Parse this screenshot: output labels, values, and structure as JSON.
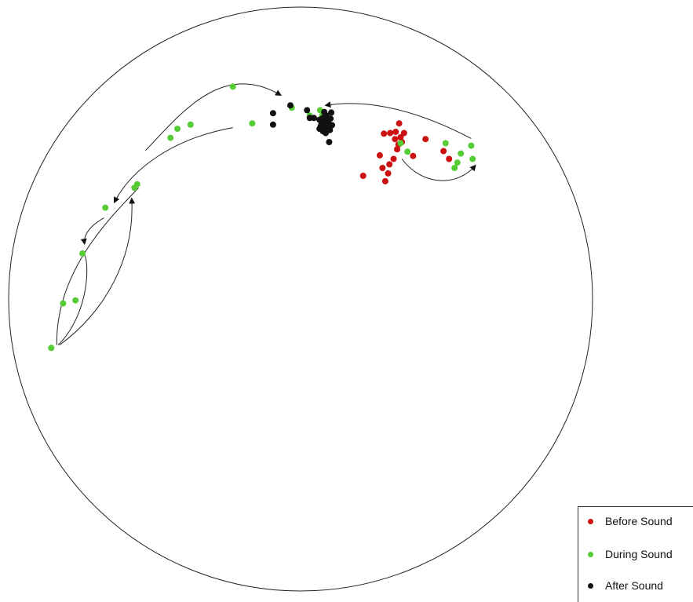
{
  "chart_data": {
    "type": "scatter",
    "title": "",
    "xlabel": "",
    "ylabel": "",
    "grid": false,
    "legend_position": "bottom-right",
    "series": [
      {
        "name": "Before Sound",
        "color": "#cc1111",
        "points": [
          [
            0.524,
            0.292
          ],
          [
            0.548,
            0.258
          ],
          [
            0.556,
            0.301
          ],
          [
            0.56,
            0.288
          ],
          [
            0.552,
            0.279
          ],
          [
            0.562,
            0.273
          ],
          [
            0.568,
            0.264
          ],
          [
            0.554,
            0.222
          ],
          [
            0.563,
            0.221
          ],
          [
            0.571,
            0.219
          ],
          [
            0.576,
            0.205
          ],
          [
            0.583,
            0.221
          ],
          [
            0.578,
            0.228
          ],
          [
            0.57,
            0.231
          ],
          [
            0.575,
            0.24
          ],
          [
            0.58,
            0.236
          ],
          [
            0.573,
            0.248
          ],
          [
            0.596,
            0.259
          ],
          [
            0.614,
            0.231
          ],
          [
            0.64,
            0.251
          ],
          [
            0.648,
            0.264
          ]
        ]
      },
      {
        "name": "During Sound",
        "color": "#55cc33",
        "points": [
          [
            0.074,
            0.578
          ],
          [
            0.091,
            0.504
          ],
          [
            0.109,
            0.499
          ],
          [
            0.119,
            0.421
          ],
          [
            0.152,
            0.345
          ],
          [
            0.194,
            0.312
          ],
          [
            0.198,
            0.306
          ],
          [
            0.246,
            0.229
          ],
          [
            0.256,
            0.214
          ],
          [
            0.275,
            0.207
          ],
          [
            0.336,
            0.144
          ],
          [
            0.364,
            0.205
          ],
          [
            0.421,
            0.179
          ],
          [
            0.447,
            0.192
          ],
          [
            0.462,
            0.183
          ],
          [
            0.465,
            0.192
          ],
          [
            0.578,
            0.238
          ],
          [
            0.588,
            0.252
          ],
          [
            0.643,
            0.238
          ],
          [
            0.66,
            0.27
          ],
          [
            0.656,
            0.279
          ],
          [
            0.665,
            0.255
          ],
          [
            0.68,
            0.242
          ],
          [
            0.682,
            0.264
          ]
        ]
      },
      {
        "name": "After Sound",
        "color": "#111111",
        "points": [
          [
            0.394,
            0.188
          ],
          [
            0.394,
            0.207
          ],
          [
            0.419,
            0.175
          ],
          [
            0.443,
            0.183
          ],
          [
            0.447,
            0.196
          ],
          [
            0.453,
            0.196
          ],
          [
            0.461,
            0.199
          ],
          [
            0.464,
            0.205
          ],
          [
            0.466,
            0.196
          ],
          [
            0.468,
            0.186
          ],
          [
            0.47,
            0.201
          ],
          [
            0.472,
            0.211
          ],
          [
            0.474,
            0.205
          ],
          [
            0.476,
            0.216
          ],
          [
            0.477,
            0.197
          ],
          [
            0.478,
            0.187
          ],
          [
            0.479,
            0.208
          ],
          [
            0.461,
            0.214
          ],
          [
            0.466,
            0.218
          ],
          [
            0.47,
            0.221
          ],
          [
            0.473,
            0.214
          ],
          [
            0.475,
            0.236
          ],
          [
            0.468,
            0.209
          ],
          [
            0.463,
            0.209
          ],
          [
            0.471,
            0.192
          ]
        ]
      }
    ],
    "trajectories": [
      {
        "path": [
          [
            0.68,
            0.23
          ],
          [
            0.6,
            0.182
          ],
          [
            0.53,
            0.164
          ],
          [
            0.47,
            0.175
          ]
        ],
        "arrow": true
      },
      {
        "path": [
          [
            0.58,
            0.264
          ],
          [
            0.61,
            0.31
          ],
          [
            0.66,
            0.31
          ],
          [
            0.686,
            0.275
          ]
        ],
        "arrow": true
      },
      {
        "path": [
          [
            0.21,
            0.25
          ],
          [
            0.26,
            0.19
          ],
          [
            0.32,
            0.1
          ],
          [
            0.405,
            0.158
          ]
        ],
        "arrow": true
      },
      {
        "path": [
          [
            0.336,
            0.212
          ],
          [
            0.25,
            0.23
          ],
          [
            0.19,
            0.28
          ],
          [
            0.165,
            0.336
          ]
        ],
        "arrow": true
      },
      {
        "path": [
          [
            0.15,
            0.362
          ],
          [
            0.13,
            0.375
          ],
          [
            0.12,
            0.39
          ],
          [
            0.122,
            0.405
          ]
        ],
        "arrow": true
      },
      {
        "path": [
          [
            0.086,
            0.573
          ],
          [
            0.15,
            0.52
          ],
          [
            0.195,
            0.43
          ],
          [
            0.19,
            0.33
          ]
        ],
        "arrow": true
      },
      {
        "path": [
          [
            0.2,
            0.312
          ],
          [
            0.16,
            0.36
          ],
          [
            0.08,
            0.45
          ],
          [
            0.082,
            0.573
          ]
        ],
        "arrow": false
      },
      {
        "path": [
          [
            0.084,
            0.573
          ],
          [
            0.13,
            0.52
          ],
          [
            0.13,
            0.43
          ],
          [
            0.12,
            0.42
          ]
        ],
        "arrow": false
      }
    ]
  }
}
